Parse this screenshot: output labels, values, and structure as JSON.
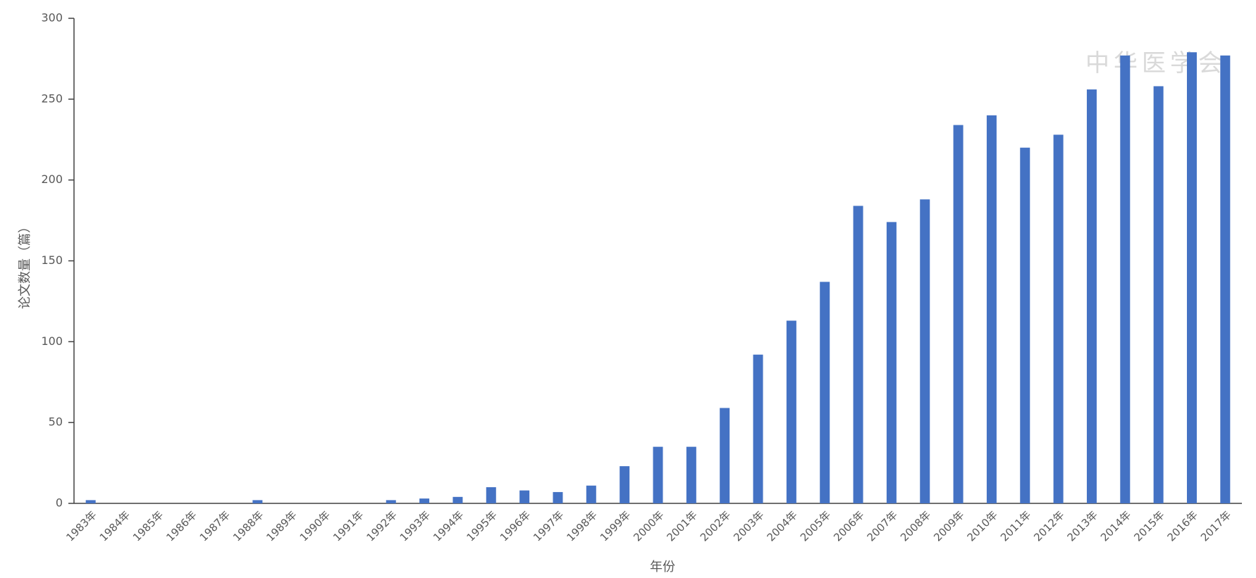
{
  "chart_data": {
    "type": "bar",
    "watermark": "中华医学会",
    "x_label": "年份",
    "y_label": "论文数量（篇）",
    "categories": [
      "1983年",
      "1984年",
      "1985年",
      "1986年",
      "1987年",
      "1988年",
      "1989年",
      "1990年",
      "1991年",
      "1992年",
      "1993年",
      "1994年",
      "1995年",
      "1996年",
      "1997年",
      "1998年",
      "1999年",
      "2000年",
      "2001年",
      "2002年",
      "2003年",
      "2004年",
      "2005年",
      "2006年",
      "2007年",
      "2008年",
      "2009年",
      "2010年",
      "2011年",
      "2012年",
      "2013年",
      "2014年",
      "2015年",
      "2016年",
      "2017年"
    ],
    "values": [
      2,
      0,
      0,
      0,
      0,
      2,
      0,
      0,
      0,
      2,
      3,
      4,
      10,
      8,
      7,
      11,
      23,
      35,
      35,
      59,
      92,
      113,
      137,
      184,
      174,
      188,
      234,
      240,
      220,
      228,
      256,
      277,
      258,
      279,
      277
    ],
    "color": "#4472c4",
    "ylim": [
      0,
      300
    ],
    "yticks": [
      0,
      50,
      100,
      150,
      200,
      250,
      300
    ],
    "grid": false
  }
}
